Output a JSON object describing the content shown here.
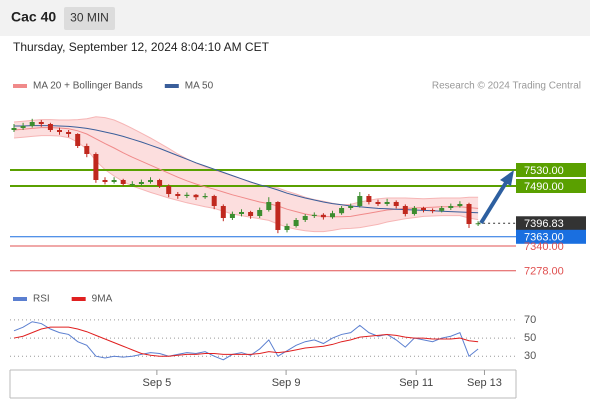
{
  "header": {
    "symbol": "Cac 40",
    "interval": "30 MIN",
    "timestamp": "Thursday, September 12, 2024 8:04:10 AM CET"
  },
  "chart_data": [
    {
      "type": "candlestick",
      "credit": "Research © 2024 Trading Central",
      "colors": {
        "up": "#3c8d2f",
        "down": "#c0281e"
      },
      "ylim": [
        7255,
        7705
      ],
      "xticks": [
        {
          "value": 15.7,
          "label": "Sep 5"
        },
        {
          "value": 29.9,
          "label": "Sep 9"
        },
        {
          "value": 44.2,
          "label": "Sep 11"
        },
        {
          "value": 51.7,
          "label": "Sep 13"
        }
      ],
      "candles": [
        [
          7630,
          7645,
          7625,
          7635
        ],
        [
          7635,
          7648,
          7630,
          7640
        ],
        [
          7640,
          7658,
          7636,
          7650
        ],
        [
          7650,
          7655,
          7638,
          7645
        ],
        [
          7645,
          7648,
          7625,
          7630
        ],
        [
          7630,
          7636,
          7618,
          7625
        ],
        [
          7625,
          7630,
          7612,
          7620
        ],
        [
          7620,
          7622,
          7585,
          7590
        ],
        [
          7590,
          7596,
          7562,
          7570
        ],
        [
          7570,
          7574,
          7498,
          7505
        ],
        [
          7505,
          7512,
          7494,
          7500
        ],
        [
          7500,
          7512,
          7496,
          7505
        ],
        [
          7505,
          7508,
          7490,
          7495
        ],
        [
          7495,
          7502,
          7489,
          7495
        ],
        [
          7495,
          7506,
          7490,
          7500
        ],
        [
          7500,
          7512,
          7496,
          7505
        ],
        [
          7505,
          7508,
          7485,
          7490
        ],
        [
          7490,
          7494,
          7462,
          7470
        ],
        [
          7470,
          7475,
          7458,
          7465
        ],
        [
          7465,
          7474,
          7460,
          7468
        ],
        [
          7468,
          7470,
          7455,
          7462
        ],
        [
          7462,
          7472,
          7458,
          7465
        ],
        [
          7465,
          7468,
          7432,
          7440
        ],
        [
          7440,
          7444,
          7402,
          7410
        ],
        [
          7410,
          7426,
          7405,
          7420
        ],
        [
          7420,
          7432,
          7414,
          7425
        ],
        [
          7425,
          7428,
          7408,
          7415
        ],
        [
          7415,
          7436,
          7410,
          7430
        ],
        [
          7430,
          7462,
          7426,
          7450
        ],
        [
          7450,
          7452,
          7372,
          7380
        ],
        [
          7380,
          7396,
          7374,
          7390
        ],
        [
          7390,
          7410,
          7386,
          7405
        ],
        [
          7405,
          7420,
          7400,
          7415
        ],
        [
          7415,
          7424,
          7410,
          7418
        ],
        [
          7418,
          7422,
          7406,
          7412
        ],
        [
          7412,
          7428,
          7408,
          7422
        ],
        [
          7422,
          7440,
          7418,
          7435
        ],
        [
          7435,
          7446,
          7430,
          7440
        ],
        [
          7440,
          7475,
          7436,
          7465
        ],
        [
          7465,
          7470,
          7444,
          7450
        ],
        [
          7450,
          7456,
          7440,
          7445
        ],
        [
          7445,
          7458,
          7440,
          7450
        ],
        [
          7450,
          7454,
          7434,
          7440
        ],
        [
          7440,
          7444,
          7414,
          7420
        ],
        [
          7420,
          7440,
          7416,
          7435
        ],
        [
          7435,
          7438,
          7424,
          7430
        ],
        [
          7430,
          7434,
          7422,
          7428
        ],
        [
          7428,
          7440,
          7424,
          7435
        ],
        [
          7435,
          7446,
          7430,
          7440
        ],
        [
          7440,
          7452,
          7436,
          7445
        ],
        [
          7445,
          7448,
          7385,
          7395
        ],
        [
          7395,
          7402,
          7390,
          7396.83
        ]
      ],
      "series": [
        {
          "name": "MA 20 + Bollinger Bands",
          "color": "#f08a8a",
          "values": [
            7630,
            7632,
            7634,
            7636,
            7636,
            7635,
            7633,
            7628,
            7620,
            7608,
            7596,
            7585,
            7573,
            7562,
            7552,
            7542,
            7532,
            7522,
            7512,
            7503,
            7495,
            7488,
            7482,
            7475,
            7468,
            7462,
            7456,
            7450,
            7446,
            7440,
            7432,
            7426,
            7420,
            7416,
            7414,
            7413,
            7413,
            7414,
            7418,
            7422,
            7426,
            7430,
            7432,
            7434,
            7435,
            7436,
            7437,
            7438,
            7438,
            7438,
            7436,
            7434
          ]
        },
        {
          "name": "MA 50",
          "color": "#3a5e9a",
          "values": [
            7640,
            7640,
            7641,
            7641,
            7641,
            7640,
            7639,
            7637,
            7634,
            7630,
            7625,
            7620,
            7614,
            7607,
            7600,
            7592,
            7584,
            7575,
            7566,
            7557,
            7548,
            7540,
            7532,
            7524,
            7516,
            7508,
            7500,
            7493,
            7487,
            7480,
            7472,
            7466,
            7460,
            7455,
            7450,
            7446,
            7443,
            7440,
            7438,
            7436,
            7434,
            7433,
            7432,
            7431,
            7430,
            7429,
            7428,
            7427,
            7426,
            7425,
            7424,
            7423
          ]
        }
      ],
      "bands": {
        "color": "#fbd3d3",
        "upper": [
          7650,
          7652,
          7654,
          7656,
          7656,
          7655,
          7655,
          7656,
          7658,
          7663,
          7661,
          7655,
          7645,
          7634,
          7622,
          7610,
          7597,
          7584,
          7570,
          7558,
          7547,
          7538,
          7530,
          7523,
          7516,
          7508,
          7500,
          7492,
          7488,
          7485,
          7477,
          7470,
          7462,
          7456,
          7452,
          7447,
          7443,
          7444,
          7450,
          7454,
          7458,
          7460,
          7460,
          7460,
          7459,
          7458,
          7459,
          7460,
          7460,
          7460,
          7462,
          7462
        ],
        "lower": [
          7610,
          7612,
          7614,
          7616,
          7616,
          7615,
          7611,
          7600,
          7582,
          7553,
          7531,
          7515,
          7501,
          7490,
          7482,
          7474,
          7467,
          7460,
          7454,
          7448,
          7443,
          7438,
          7434,
          7427,
          7420,
          7416,
          7412,
          7408,
          7404,
          7395,
          7387,
          7382,
          7378,
          7376,
          7376,
          7379,
          7383,
          7384,
          7386,
          7390,
          7394,
          7400,
          7404,
          7408,
          7411,
          7414,
          7415,
          7416,
          7416,
          7416,
          7410,
          7406
        ]
      },
      "levels": [
        {
          "value": 7530,
          "label": "7530.00",
          "color": "#5aa000",
          "boxed": true,
          "style": "solid"
        },
        {
          "value": 7490,
          "label": "7490.00",
          "color": "#5aa000",
          "boxed": true,
          "style": "solid"
        },
        {
          "value": 7396.83,
          "color": "#333333",
          "boxed": true,
          "style": "dotted"
        },
        {
          "value": 7363,
          "label": "7363.00",
          "color": "#1a6fe0",
          "boxed": true,
          "style": "solid"
        },
        {
          "value": 7340,
          "label": "7340.00",
          "color": "#e05050",
          "boxed": false,
          "style": "solid"
        },
        {
          "value": 7278,
          "label": "7278.00",
          "color": "#e05050",
          "boxed": false,
          "style": "solid"
        }
      ]
    },
    {
      "type": "line",
      "ylim": [
        17,
        103
      ],
      "yticks": [
        70,
        50,
        30
      ],
      "series": [
        {
          "name": "RSI",
          "color": "#5b7fd0",
          "values": [
            58,
            62,
            68,
            66,
            60,
            56,
            54,
            46,
            42,
            30,
            28,
            30,
            29,
            30,
            32,
            34,
            33,
            30,
            32,
            34,
            33,
            35,
            30,
            26,
            32,
            34,
            31,
            38,
            48,
            30,
            36,
            42,
            46,
            48,
            44,
            50,
            54,
            56,
            64,
            56,
            52,
            54,
            48,
            40,
            50,
            48,
            46,
            50,
            52,
            56,
            30,
            38
          ]
        },
        {
          "name": "9MA",
          "color": "#e02020",
          "values": [
            50,
            52,
            56,
            60,
            62,
            62,
            62,
            60,
            57,
            53,
            49,
            45,
            41,
            37,
            33,
            31,
            30,
            30,
            31,
            32,
            32,
            33,
            33,
            32,
            32,
            32,
            32,
            33,
            35,
            34,
            35,
            37,
            39,
            40,
            41,
            43,
            46,
            48,
            51,
            52,
            53,
            54,
            53,
            51,
            50,
            50,
            49,
            49,
            49,
            50,
            47,
            46
          ]
        }
      ]
    }
  ]
}
